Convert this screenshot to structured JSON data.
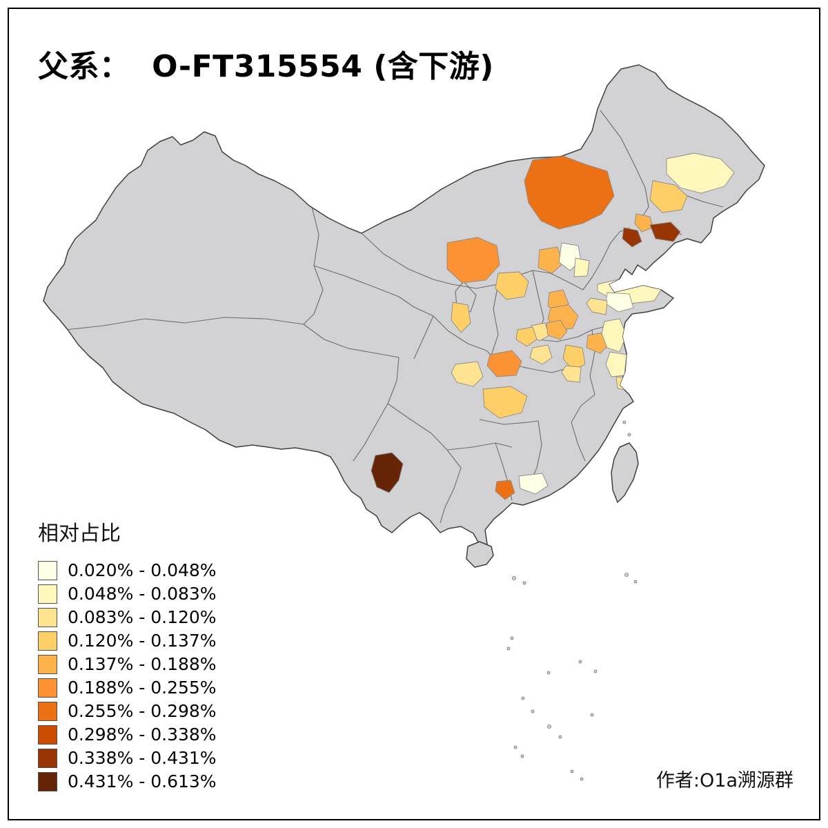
{
  "title": {
    "text": "父系：  O-FT315554 (含下游)"
  },
  "legend": {
    "title": "相对占比",
    "classes": [
      {
        "label": "0.020% - 0.048%",
        "color": "#FFFFE5"
      },
      {
        "label": "0.048% - 0.083%",
        "color": "#FFF7BC"
      },
      {
        "label": "0.083% - 0.120%",
        "color": "#FEE391"
      },
      {
        "label": "0.120% - 0.137%",
        "color": "#FECF66"
      },
      {
        "label": "0.137% - 0.188%",
        "color": "#FEB24C"
      },
      {
        "label": "0.188% - 0.255%",
        "color": "#FB9334"
      },
      {
        "label": "0.255% - 0.298%",
        "color": "#EC7014"
      },
      {
        "label": "0.298% - 0.338%",
        "color": "#CC4C02"
      },
      {
        "label": "0.338% - 0.431%",
        "color": "#993404"
      },
      {
        "label": "0.431% - 0.613%",
        "color": "#662506"
      }
    ]
  },
  "author": {
    "text": "作者:O1a溯源群"
  },
  "frame": {
    "border_color": "#000000"
  },
  "map": {
    "sea_background": "#FFFFFF",
    "land_fill": "#D2D2D5",
    "national_border_color": "#3F3F3F",
    "province_border_color": "#6B6B6B",
    "region_border_color": "#8A8A8A",
    "regions": [
      {
        "id": "r01",
        "class": 7
      },
      {
        "id": "r02",
        "class": 2
      },
      {
        "id": "r03",
        "class": 4
      },
      {
        "id": "r04",
        "class": 5
      },
      {
        "id": "r05",
        "class": 9
      },
      {
        "id": "r06",
        "class": 9
      },
      {
        "id": "r07",
        "class": 6
      },
      {
        "id": "r08",
        "class": 5
      },
      {
        "id": "r09",
        "class": 1
      },
      {
        "id": "r10",
        "class": 2
      },
      {
        "id": "r11",
        "class": 4
      },
      {
        "id": "r12",
        "class": 4
      },
      {
        "id": "r13",
        "class": 5
      },
      {
        "id": "r14",
        "class": 5
      },
      {
        "id": "r15",
        "class": 3
      },
      {
        "id": "r16",
        "class": 2
      },
      {
        "id": "r17",
        "class": 1
      },
      {
        "id": "r18",
        "class": 3
      },
      {
        "id": "r19",
        "class": 5
      },
      {
        "id": "r20",
        "class": 4
      },
      {
        "id": "r21",
        "class": 6
      },
      {
        "id": "r22",
        "class": 3
      },
      {
        "id": "r23",
        "class": 4
      },
      {
        "id": "r24",
        "class": 3
      },
      {
        "id": "r25",
        "class": 5
      },
      {
        "id": "r26",
        "class": 2
      },
      {
        "id": "r27",
        "class": 2
      },
      {
        "id": "r28",
        "class": 3
      },
      {
        "id": "r29",
        "class": 3
      },
      {
        "id": "r30",
        "class": 4
      },
      {
        "id": "r31",
        "class": 10
      },
      {
        "id": "r32",
        "class": 7
      },
      {
        "id": "r33",
        "class": 1
      }
    ]
  }
}
